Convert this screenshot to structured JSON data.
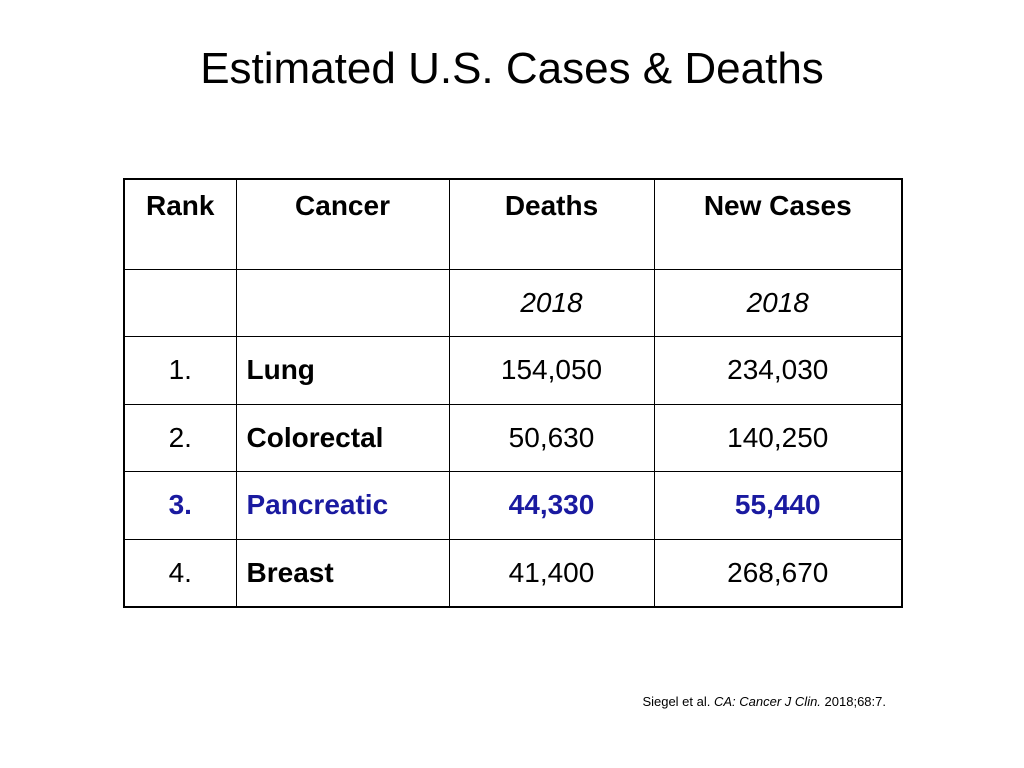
{
  "slide": {
    "title": "Estimated U.S. Cases & Deaths"
  },
  "table": {
    "headers": [
      "Rank",
      "Cancer",
      "Deaths",
      "New Cases"
    ],
    "years": [
      "",
      "",
      "2018",
      "2018"
    ],
    "rows": [
      {
        "rank": "1.",
        "cancer": "Lung",
        "deaths": "154,050",
        "new_cases": "234,030"
      },
      {
        "rank": "2.",
        "cancer": "Colorectal",
        "deaths": "50,630",
        "new_cases": "140,250"
      },
      {
        "rank": "3.",
        "cancer": "Pancreatic",
        "deaths": "44,330",
        "new_cases": "55,440"
      },
      {
        "rank": "4.",
        "cancer": "Breast",
        "deaths": "41,400",
        "new_cases": "268,670"
      }
    ],
    "highlight_color": "#1a1aa0"
  },
  "citation": {
    "authors": "Siegel et al.",
    "journal": "CA: Cancer J Clin.",
    "details": "2018;68:7."
  }
}
